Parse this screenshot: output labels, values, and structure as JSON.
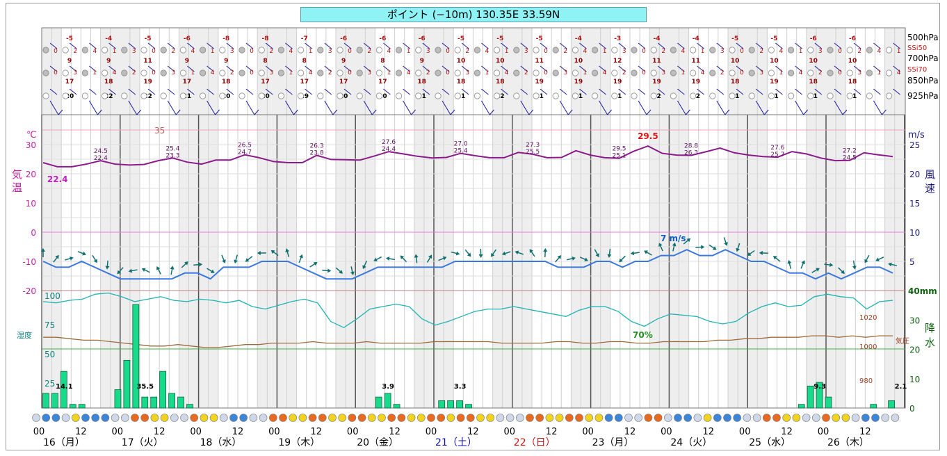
{
  "title": "ポイント (−10m) 130.35E 33.59N",
  "colors": {
    "temperature": "#8b1a8b",
    "wind": "#3a78e0",
    "humidity": "#1fb3b3",
    "pressure": "#9c6b3c",
    "precip": "#19d98a",
    "night_band": "#eeeeee"
  },
  "axes": {
    "left_unit": "℃",
    "left_label_1": "気",
    "left_label_2": "温",
    "left_ticks": [
      "30",
      "20",
      "10",
      "0",
      "-10",
      "-20"
    ],
    "right_unit": "m/s",
    "right_label_1": "風",
    "right_label_2": "速",
    "right_ticks": [
      "25",
      "20",
      "15",
      "10",
      "5"
    ],
    "right_precip_unit": "40mm",
    "right_precip_label_1": "降",
    "right_precip_label_2": "水",
    "right_precip_ticks": [
      "30",
      "20",
      "10",
      "0"
    ],
    "humidity_label": "湿度",
    "humidity_ticks": [
      "100",
      "75",
      "50",
      "25"
    ],
    "pressure_label": "気圧",
    "pressure_ticks": [
      "1020",
      "1000",
      "980"
    ],
    "ref_35": "35",
    "ref_70": "70%"
  },
  "levels": [
    "500hPa",
    "700hPa",
    "850hPa",
    "925hPa"
  ],
  "ssi": [
    "SSi50",
    "SSi70"
  ],
  "upper_temps": {
    "t500": [
      "-5",
      "-4",
      "-5",
      "-6",
      "-8",
      "-8",
      "-7",
      "-6",
      "-6",
      "-6",
      "-5",
      "-5",
      "-5",
      "-4",
      "-3",
      "-4",
      "-4",
      "-5",
      "-5",
      "-6",
      "-6"
    ],
    "t700": [
      "9",
      "9",
      "11",
      "9",
      "9",
      "8",
      "8",
      "9",
      "8",
      "9",
      "10",
      "10",
      "11",
      "10",
      "12",
      "11",
      "11",
      "10",
      "10",
      "10",
      "10"
    ],
    "t850": [
      "17",
      "18",
      "19",
      "17",
      "18",
      "17",
      "17",
      "17",
      "17",
      "18",
      "18",
      "18",
      "19",
      "19",
      "19",
      "19",
      "19",
      "18",
      "19",
      "18",
      "18"
    ],
    "t925": [
      "20",
      "22",
      "22",
      "21",
      "20",
      "20",
      "19",
      "20",
      "20",
      "21",
      "21",
      "22",
      "21",
      "21",
      "21",
      "22",
      "22",
      "21",
      "21",
      "21",
      "21"
    ]
  },
  "dates": [
    {
      "label": "16（月）",
      "color": "#000000"
    },
    {
      "label": "17（火）",
      "color": "#000000"
    },
    {
      "label": "18（水）",
      "color": "#000000"
    },
    {
      "label": "19（木）",
      "color": "#000000"
    },
    {
      "label": "20（金）",
      "color": "#000000"
    },
    {
      "label": "21（土）",
      "color": "#1010b0"
    },
    {
      "label": "22（日）",
      "color": "#d01010"
    },
    {
      "label": "23（月）",
      "color": "#000000"
    },
    {
      "label": "24（火）",
      "color": "#000000"
    },
    {
      "label": "25（水）",
      "color": "#000000"
    },
    {
      "label": "26（木）",
      "color": "#000000"
    }
  ],
  "hour_labels": [
    "00",
    "12"
  ],
  "chart_data": {
    "type": "line",
    "x_unit": "3-hourly steps from 16th 00h",
    "temperature": {
      "name": "気温",
      "values": [
        23.8,
        22.4,
        22.4,
        23.3,
        24.5,
        23.3,
        23.0,
        23.2,
        24.5,
        25.4,
        24.0,
        23.3,
        24.7,
        24.7,
        26.5,
        25.5,
        24.2,
        23.8,
        23.8,
        26.3,
        24.9,
        24.8,
        24.7,
        26.1,
        27.6,
        26.8,
        26.0,
        25.4,
        25.6,
        27.0,
        26.2,
        25.5,
        25.5,
        27.3,
        26.7,
        25.5,
        25.6,
        27.9,
        26.4,
        25.5,
        25.3,
        27.7,
        29.5,
        27.0,
        26.4,
        26.3,
        27.5,
        28.8,
        27.2,
        26.4,
        25.9,
        25.7,
        27.6,
        26.8,
        25.4,
        24.5,
        24.6,
        27.2,
        26.5,
        25.9
      ],
      "labels": [
        {
          "i": 1,
          "text": "22.4",
          "color": "#c020c0",
          "big": true
        },
        {
          "i": 4,
          "text": "24.5"
        },
        {
          "i": 4,
          "text": "22.4",
          "below": true
        },
        {
          "i": 9,
          "text": "25.4"
        },
        {
          "i": 9,
          "text": "23.3",
          "below": true
        },
        {
          "i": 14,
          "text": "26.5"
        },
        {
          "i": 14,
          "text": "24.7",
          "below": true
        },
        {
          "i": 19,
          "text": "26.3"
        },
        {
          "i": 19,
          "text": "23.8",
          "below": true
        },
        {
          "i": 24,
          "text": "27.6"
        },
        {
          "i": 24,
          "text": "24.4",
          "below": true
        },
        {
          "i": 29,
          "text": "27.0"
        },
        {
          "i": 29,
          "text": "25.4",
          "below": true
        },
        {
          "i": 34,
          "text": "27.3"
        },
        {
          "i": 34,
          "text": "25.5",
          "below": true
        },
        {
          "i": 42,
          "text": "29.5",
          "color": "#e01010",
          "big": true
        },
        {
          "i": 40,
          "text": "29.5"
        },
        {
          "i": 40,
          "text": "25.1",
          "below": true
        },
        {
          "i": 45,
          "text": "28.8"
        },
        {
          "i": 45,
          "text": "26.3",
          "below": true
        },
        {
          "i": 51,
          "text": "27.6"
        },
        {
          "i": 51,
          "text": "25.7",
          "below": true
        },
        {
          "i": 56,
          "text": "27.2"
        },
        {
          "i": 56,
          "text": "24.5",
          "below": true
        }
      ]
    },
    "wind_speed": {
      "name": "風速",
      "values": [
        5,
        4,
        4,
        5,
        4,
        3,
        2,
        2,
        2,
        2,
        2,
        3,
        3,
        2,
        4,
        4,
        4,
        5,
        5,
        5,
        4,
        3,
        2,
        2,
        2,
        3,
        4,
        4,
        4,
        4,
        4,
        4,
        5,
        5,
        5,
        5,
        5,
        5,
        5,
        5,
        4,
        4,
        4,
        5,
        5,
        4,
        5,
        5,
        6,
        6,
        7,
        6,
        6,
        7,
        6,
        5,
        5,
        4,
        3,
        3,
        2,
        3,
        2,
        3,
        4,
        4,
        3
      ],
      "peak_label": "7 m/s"
    },
    "humidity": {
      "name": "湿度",
      "values": [
        86,
        85,
        87,
        88,
        92,
        93,
        90,
        86,
        88,
        90,
        87,
        86,
        88,
        87,
        85,
        87,
        82,
        80,
        83,
        86,
        88,
        85,
        70,
        65,
        72,
        80,
        82,
        84,
        82,
        72,
        67,
        70,
        74,
        78,
        80,
        80,
        82,
        80,
        78,
        76,
        74,
        79,
        82,
        82,
        78,
        70,
        66,
        72,
        76,
        75,
        74,
        70,
        68,
        70,
        77,
        82,
        85,
        82,
        83,
        90,
        92,
        90,
        89,
        80,
        86,
        87
      ],
      "min_label": "70%"
    },
    "pressure": {
      "name": "気圧",
      "values": [
        1008,
        1008,
        1007,
        1006,
        1006,
        1005,
        1004,
        1003,
        1002,
        1002,
        1003,
        1002,
        1001,
        1001,
        1002,
        1003,
        1003,
        1004,
        1004,
        1004,
        1005,
        1004,
        1004,
        1004,
        1005,
        1004,
        1004,
        1004,
        1004,
        1005,
        1005,
        1005,
        1005,
        1005,
        1004,
        1004,
        1004,
        1004,
        1005,
        1005,
        1004,
        1004,
        1005,
        1005,
        1004,
        1004,
        1005,
        1005,
        1005,
        1005,
        1006,
        1006,
        1007,
        1007,
        1008,
        1008,
        1008,
        1009,
        1009,
        1008,
        1009,
        1008,
        1009,
        1009
      ]
    },
    "precipitation": {
      "name": "降水",
      "unit": "mm",
      "values": [
        2,
        2,
        5,
        0.5,
        0.5,
        0,
        0,
        0,
        2.5,
        6.5,
        14.1,
        1.5,
        1.5,
        5,
        2,
        1.5,
        0.5,
        0,
        0,
        0,
        0,
        0,
        0,
        0,
        0,
        0,
        0,
        0,
        0,
        0,
        0,
        0,
        0,
        0,
        0,
        0,
        0,
        1.5,
        2,
        0.5,
        0,
        0,
        0,
        0,
        1,
        1,
        1,
        0.5,
        0,
        0,
        0,
        0,
        0,
        0,
        0,
        0,
        0,
        0,
        0,
        0,
        0,
        0,
        0,
        0,
        0,
        0,
        0,
        0,
        0,
        0,
        0,
        0,
        0,
        0,
        0,
        0,
        0,
        0,
        0,
        0,
        0,
        0,
        0,
        0,
        0.5,
        3,
        3.5,
        1.5,
        0,
        0,
        0,
        0,
        0.5,
        0,
        1,
        0
      ],
      "labels": [
        {
          "i": 2,
          "text": "14.1"
        },
        {
          "i": 11,
          "text": "35.5"
        },
        {
          "i": 38,
          "text": "3.9"
        },
        {
          "i": 46,
          "text": "3.3"
        },
        {
          "i": 86,
          "text": "9.3"
        },
        {
          "i": 95,
          "text": "2.1"
        }
      ]
    },
    "ylim_temperature": [
      -25,
      35
    ],
    "ylim_wind": [
      0,
      25
    ],
    "ylim_precip": [
      0,
      40
    ],
    "grid": true
  }
}
